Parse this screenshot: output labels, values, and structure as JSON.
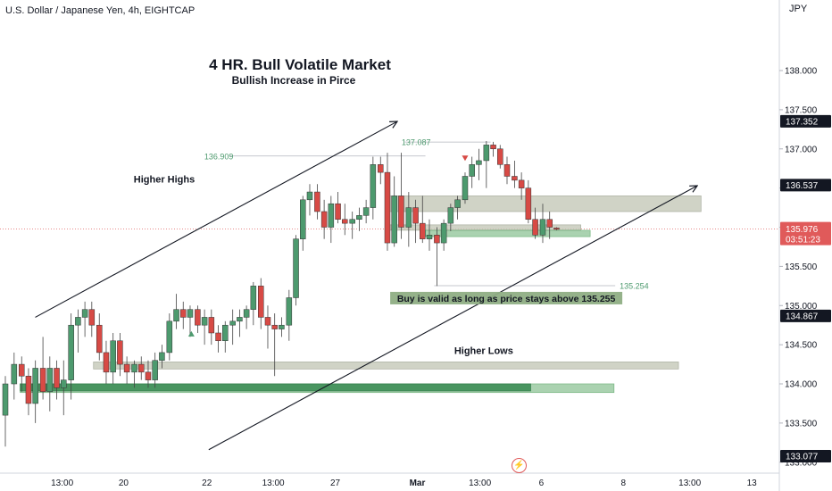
{
  "header": {
    "title": "U.S. Dollar / Japanese Yen, 4h, EIGHTCAP",
    "currency": "JPY"
  },
  "colors": {
    "bull": "#4d9a6e",
    "bear": "#d74a45",
    "zone_gray": "#c5c9b9",
    "zone_green": "#96c79d",
    "price_line": "#e06060"
  },
  "chart_data": {
    "type": "candlestick",
    "title": "4 HR. Bull Volatile Market",
    "subtitle": "Bullish Increase in Pirce",
    "ylim": [
      133.077,
      138.65
    ],
    "y_ticks": [
      133.0,
      133.5,
      134.0,
      134.5,
      135.0,
      135.5,
      136.0,
      136.5,
      137.0,
      137.5,
      138.0
    ],
    "y_tick_labels": [
      "133.000",
      "133.500",
      "134.000",
      "134.500",
      "135.000",
      "135.500",
      "136.000",
      "136.500",
      "137.000",
      "137.500",
      "138.000"
    ],
    "price_badges": [
      {
        "label": "137.352",
        "value": 137.352,
        "style": "dark"
      },
      {
        "label": "136.537",
        "value": 136.537,
        "style": "dark"
      },
      {
        "label": "135.976",
        "value": 135.976,
        "style": "current"
      },
      {
        "label": "134.867",
        "value": 134.867,
        "style": "dark"
      },
      {
        "label": "133.077",
        "value": 133.077,
        "style": "dark"
      }
    ],
    "countdown": "03:51:23",
    "x_labels": [
      "13:00",
      "20",
      "22",
      "13:00",
      "27",
      "Mar",
      "13:00",
      "6",
      "8",
      "13:00",
      "13"
    ],
    "x_label_positions": [
      9.5,
      19.3,
      32.6,
      43.2,
      53.1,
      66.2,
      76.2,
      86.0,
      99.1,
      109.7,
      119.6
    ],
    "x_label_bold": [
      false,
      false,
      false,
      false,
      false,
      true,
      false,
      false,
      false,
      false,
      false
    ],
    "candles": [
      [
        0.0,
        133.6,
        134.1,
        133.2,
        134.0
      ],
      [
        1.4,
        134.0,
        134.4,
        133.8,
        134.25
      ],
      [
        2.6,
        134.25,
        134.35,
        133.9,
        134.1
      ],
      [
        3.7,
        134.1,
        134.2,
        133.6,
        133.75
      ],
      [
        4.8,
        133.75,
        134.3,
        133.5,
        134.2
      ],
      [
        6.0,
        134.2,
        134.6,
        133.8,
        133.9
      ],
      [
        7.1,
        133.9,
        134.35,
        133.65,
        134.2
      ],
      [
        8.2,
        134.2,
        134.3,
        133.8,
        133.95
      ],
      [
        9.3,
        133.95,
        134.3,
        133.6,
        134.05
      ],
      [
        10.5,
        134.05,
        134.9,
        133.8,
        134.75
      ],
      [
        11.6,
        134.75,
        134.95,
        134.4,
        134.85
      ],
      [
        12.7,
        134.85,
        135.05,
        134.6,
        134.95
      ],
      [
        13.8,
        134.95,
        135.05,
        134.6,
        134.75
      ],
      [
        15.0,
        134.75,
        134.9,
        134.3,
        134.4
      ],
      [
        16.1,
        134.4,
        134.55,
        134.0,
        134.15
      ],
      [
        17.2,
        134.15,
        134.65,
        134.0,
        134.55
      ],
      [
        18.3,
        134.55,
        134.65,
        134.1,
        134.25
      ],
      [
        19.4,
        134.25,
        134.35,
        134.0,
        134.15
      ],
      [
        20.6,
        134.15,
        134.3,
        133.95,
        134.25
      ],
      [
        21.7,
        134.25,
        134.35,
        134.05,
        134.15
      ],
      [
        22.8,
        134.15,
        134.3,
        133.95,
        134.05
      ],
      [
        23.9,
        134.05,
        134.4,
        133.95,
        134.3
      ],
      [
        25.0,
        134.3,
        134.5,
        134.2,
        134.4
      ],
      [
        26.2,
        134.4,
        134.9,
        134.3,
        134.8
      ],
      [
        27.3,
        134.8,
        135.15,
        134.7,
        134.95
      ],
      [
        28.4,
        134.95,
        135.05,
        134.7,
        134.85
      ],
      [
        29.5,
        134.85,
        135.0,
        134.6,
        134.95
      ],
      [
        30.7,
        134.95,
        135.0,
        134.65,
        134.75
      ],
      [
        31.8,
        134.75,
        134.95,
        134.5,
        134.85
      ],
      [
        32.9,
        134.85,
        134.95,
        134.5,
        134.65
      ],
      [
        34.0,
        134.65,
        134.75,
        134.4,
        134.55
      ],
      [
        35.1,
        134.55,
        134.8,
        134.4,
        134.75
      ],
      [
        36.3,
        134.75,
        134.95,
        134.5,
        134.8
      ],
      [
        37.4,
        134.8,
        134.95,
        134.6,
        134.85
      ],
      [
        38.5,
        134.85,
        135.0,
        134.7,
        134.95
      ],
      [
        39.6,
        134.95,
        135.3,
        134.75,
        135.25
      ],
      [
        40.8,
        135.25,
        135.35,
        134.7,
        134.85
      ],
      [
        41.9,
        134.85,
        135.0,
        134.45,
        134.75
      ],
      [
        43.0,
        134.75,
        134.9,
        134.1,
        134.7
      ],
      [
        44.1,
        134.7,
        134.85,
        134.6,
        134.75
      ],
      [
        45.3,
        134.75,
        135.2,
        134.55,
        135.1
      ],
      [
        46.4,
        135.1,
        135.9,
        135.0,
        135.85
      ],
      [
        47.5,
        135.85,
        136.4,
        135.7,
        136.35
      ],
      [
        48.6,
        136.35,
        136.55,
        136.15,
        136.45
      ],
      [
        49.8,
        136.45,
        136.55,
        136.1,
        136.2
      ],
      [
        50.9,
        136.2,
        136.35,
        135.85,
        136.0
      ],
      [
        52.0,
        136.0,
        136.4,
        135.8,
        136.3
      ],
      [
        53.1,
        136.3,
        136.45,
        136.05,
        136.1
      ],
      [
        54.2,
        136.1,
        136.3,
        135.9,
        136.05
      ],
      [
        55.4,
        136.05,
        136.2,
        135.85,
        136.1
      ],
      [
        56.5,
        136.1,
        136.25,
        135.95,
        136.15
      ],
      [
        57.6,
        136.15,
        136.35,
        136.05,
        136.25
      ],
      [
        58.7,
        136.25,
        136.9,
        136.1,
        136.8
      ],
      [
        59.9,
        136.8,
        136.9,
        136.55,
        136.7
      ],
      [
        61.0,
        136.7,
        136.95,
        135.7,
        135.8
      ],
      [
        62.1,
        135.8,
        136.65,
        135.75,
        136.4
      ],
      [
        63.2,
        136.4,
        136.95,
        135.85,
        136.0
      ],
      [
        64.4,
        136.0,
        136.45,
        135.75,
        136.25
      ],
      [
        65.5,
        136.25,
        136.35,
        135.8,
        136.05
      ],
      [
        66.6,
        136.05,
        136.4,
        135.8,
        135.85
      ],
      [
        67.7,
        135.85,
        136.1,
        135.7,
        135.9
      ],
      [
        68.9,
        135.9,
        136.0,
        135.25,
        135.8
      ],
      [
        70.0,
        135.8,
        136.1,
        135.7,
        136.05
      ],
      [
        71.1,
        136.05,
        136.3,
        135.95,
        136.25
      ],
      [
        72.2,
        136.25,
        136.4,
        136.1,
        136.35
      ],
      [
        73.4,
        136.35,
        136.7,
        136.3,
        136.65
      ],
      [
        74.5,
        136.65,
        136.9,
        136.5,
        136.8
      ],
      [
        75.6,
        136.8,
        137.0,
        136.6,
        136.85
      ],
      [
        76.8,
        136.85,
        137.1,
        136.5,
        137.05
      ],
      [
        77.9,
        137.05,
        137.09,
        136.9,
        137.0
      ],
      [
        79.0,
        137.0,
        137.05,
        136.75,
        136.8
      ],
      [
        80.1,
        136.8,
        136.9,
        136.55,
        136.65
      ],
      [
        81.3,
        136.65,
        136.85,
        136.5,
        136.6
      ],
      [
        82.4,
        136.6,
        136.7,
        136.35,
        136.5
      ],
      [
        83.5,
        136.5,
        136.6,
        136.05,
        136.1
      ],
      [
        84.6,
        136.1,
        136.25,
        135.85,
        135.9
      ],
      [
        85.8,
        135.9,
        136.3,
        135.8,
        136.1
      ],
      [
        86.9,
        136.1,
        136.2,
        135.85,
        136.0
      ],
      [
        88.0,
        135.99,
        136.0,
        135.96,
        135.976
      ]
    ],
    "zones": [
      {
        "x0": 61.5,
        "x1": 92.3,
        "y0": 135.98,
        "y1": 136.03,
        "kind": "gray"
      },
      {
        "x0": 61.5,
        "x1": 111.5,
        "y0": 136.2,
        "y1": 136.4,
        "kind": "gray"
      },
      {
        "x0": 67.5,
        "x1": 93.8,
        "y0": 135.88,
        "y1": 135.96,
        "kind": "green"
      },
      {
        "x0": 14.5,
        "x1": 107.9,
        "y0": 134.19,
        "y1": 134.28,
        "kind": "gray"
      },
      {
        "x0": 2.8,
        "x1": 97.6,
        "y0": 133.89,
        "y1": 134.0,
        "kind": "green"
      },
      {
        "x0": 2.8,
        "x1": 84.3,
        "y0": 133.91,
        "y1": 134.0,
        "kind": "greendark"
      }
    ],
    "trend_lines": [
      {
        "x0": 5.2,
        "y0": 134.85,
        "x1": 63.0,
        "y1": 137.35,
        "arrow": true
      },
      {
        "x0": 32.9,
        "y0": 133.16,
        "x1": 110.9,
        "y1": 136.53,
        "arrow": true
      }
    ],
    "level_marks": [
      {
        "label": "136.909",
        "value": 136.909,
        "x0": 36.3,
        "x1": 67.5,
        "label_x": 32.2
      },
      {
        "label": "137.087",
        "value": 137.087,
        "x0": 64.2,
        "x1": 77.9,
        "label_x": 63.7
      },
      {
        "label": "135.254",
        "value": 135.254,
        "x0": 68.9,
        "x1": 97.8,
        "label_x": 98.5
      }
    ],
    "markers": [
      {
        "x": 29.7,
        "y": 134.64,
        "shape": "up",
        "color": "#4d9a6e"
      },
      {
        "x": 73.4,
        "y": 136.88,
        "shape": "down",
        "color": "#d74a45"
      }
    ],
    "annotations": [
      {
        "text": "Higher Highs",
        "x": 25.8,
        "y": 136.57,
        "bold": true
      },
      {
        "text": "Higher Lows",
        "x": 76.8,
        "y": 134.38,
        "bold": true
      }
    ],
    "callout": {
      "text": "Buy is valid as long as price stays above 135.255",
      "x": 80.4,
      "y": 135.095
    }
  }
}
